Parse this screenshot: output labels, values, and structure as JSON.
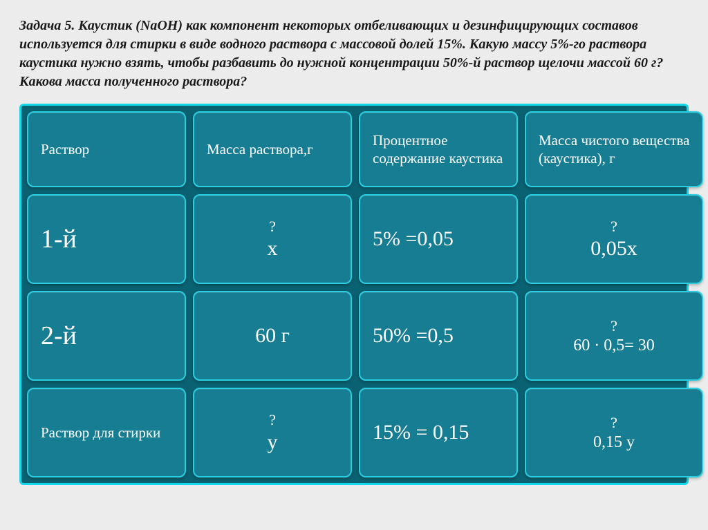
{
  "problem": {
    "label": "Задача 5.",
    "text": " Каустик (NaOH) как компонент некоторых отбеливающих и дезинфицирующих составов используется для стирки в виде водного раствора с массовой долей 15%. Какую массу 5%-го раствора каустика нужно взять, чтобы разбавить до нужной концентрации 50%-й раствор щелочи массой 60 г? Какова масса полученного раствора?"
  },
  "headers": {
    "c1": "Раствор",
    "c2": "Масса раствора,г",
    "c3": "Процентное содержание каустика",
    "c4": "Масса чистого вещества (каустика), г"
  },
  "rows": {
    "r1": {
      "label": "1-й",
      "mass_q": "?",
      "mass_v": "x",
      "percent": "5% =0,05",
      "pure_q": "?",
      "pure_v": "0,05x"
    },
    "r2": {
      "label": "2-й",
      "mass_v": "60 г",
      "percent": "50% =0,5",
      "pure_q": "?",
      "pure_v": "60 · 0,5= 30"
    },
    "r3": {
      "label": "Раствор для стирки",
      "mass_q": "?",
      "mass_v": "y",
      "percent": "15% = 0,15",
      "pure_q": "?",
      "pure_v": "0,15 y"
    }
  },
  "style": {
    "slide_bg": "#ececec",
    "table_bg": "#0a6171",
    "table_border": "#15d7ea",
    "cell_bg": "#177d92",
    "cell_border": "#2bcee0",
    "text_color": "#ffffff",
    "problem_color": "#1a1a1a",
    "problem_fontsize": 20,
    "header_fontsize": 21,
    "big_fontsize": 38,
    "med_fontsize": 30
  }
}
